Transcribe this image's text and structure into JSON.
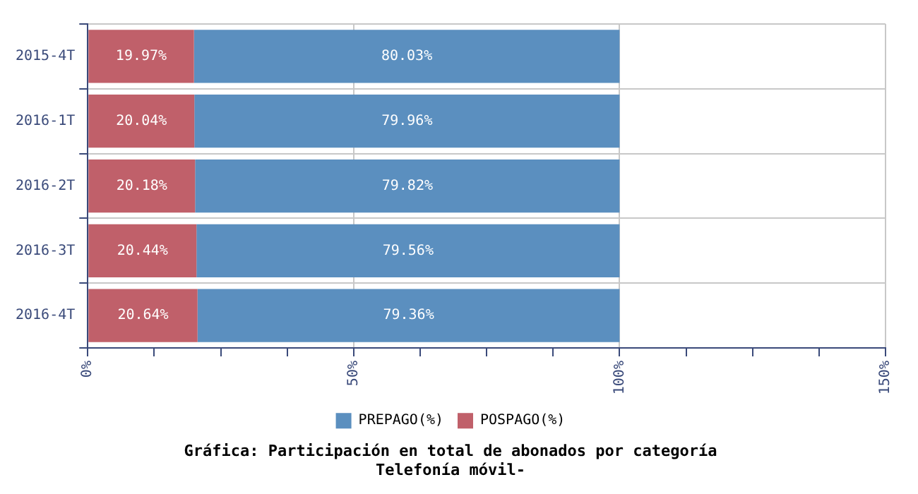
{
  "chart_data": {
    "type": "bar",
    "orientation": "horizontal",
    "stacked": true,
    "title": "Gráfica: Participación en total de abonados por categoría",
    "subtitle": "Telefonía móvil-",
    "categories": [
      "2015-4T",
      "2016-1T",
      "2016-2T",
      "2016-3T",
      "2016-4T"
    ],
    "series": [
      {
        "name": "POSPAGO(%)",
        "color": "#c0606a",
        "values": [
          19.97,
          20.04,
          20.18,
          20.44,
          20.64
        ]
      },
      {
        "name": "PREPAGO(%)",
        "color": "#5b8fbf",
        "values": [
          80.03,
          79.96,
          79.82,
          79.56,
          79.36
        ]
      }
    ],
    "xlim": [
      0,
      150
    ],
    "xticks": [
      {
        "value": 0,
        "label": "0%"
      },
      {
        "value": 12.5,
        "label": null
      },
      {
        "value": 25,
        "label": null
      },
      {
        "value": 37.5,
        "label": null
      },
      {
        "value": 50,
        "label": "50%"
      },
      {
        "value": 62.5,
        "label": null
      },
      {
        "value": 75,
        "label": null
      },
      {
        "value": 87.5,
        "label": null
      },
      {
        "value": 100,
        "label": "100%"
      },
      {
        "value": 112.5,
        "label": null
      },
      {
        "value": 125,
        "label": null
      },
      {
        "value": 137.5,
        "label": null
      },
      {
        "value": 150,
        "label": "150%"
      }
    ],
    "value_labels": [
      [
        "19.97%",
        "20.04%",
        "20.18%",
        "20.44%",
        "20.64%"
      ],
      [
        "80.03%",
        "79.96%",
        "79.82%",
        "79.56%",
        "79.36%"
      ]
    ],
    "grid": true,
    "legend": "bottom"
  }
}
